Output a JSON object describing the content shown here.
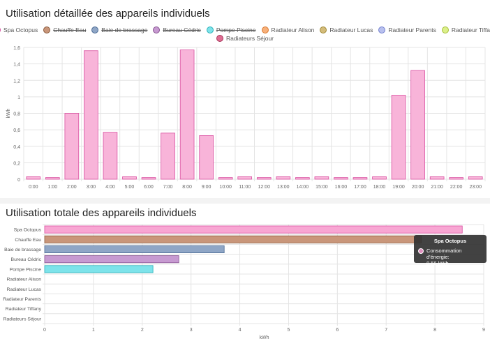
{
  "card1": {
    "title": "Utilisation détaillée des appareils individuels"
  },
  "card2": {
    "title": "Utilisation totale des appareils individuels"
  },
  "legend": [
    {
      "label": "Spa Octopus",
      "color": "#f8b4d9",
      "border": "#d94fa0",
      "hidden": false
    },
    {
      "label": "Chauffe Eau",
      "color": "#c9967a",
      "border": "#8a5a3c",
      "hidden": true
    },
    {
      "label": "Baie de brassage",
      "color": "#8fa6c6",
      "border": "#4a6a94",
      "hidden": true
    },
    {
      "label": "Bureau Cédric",
      "color": "#c79ad1",
      "border": "#84508f",
      "hidden": true
    },
    {
      "label": "Pompe Piscine",
      "color": "#7de3ea",
      "border": "#2bb0b8",
      "hidden": true
    },
    {
      "label": "Radiateur Alison",
      "color": "#f7b07a",
      "border": "#d9782e",
      "hidden": false
    },
    {
      "label": "Radiateur Lucas",
      "color": "#d4bc7a",
      "border": "#a08936",
      "hidden": false
    },
    {
      "label": "Radiateur Parents",
      "color": "#b8c0ee",
      "border": "#7380cf",
      "hidden": false
    },
    {
      "label": "Radiateur Tiffany",
      "color": "#dcf08a",
      "border": "#a6bf3a",
      "hidden": false
    },
    {
      "label": "Radiateurs Séjour",
      "color": "#de6d92",
      "border": "#a8335a",
      "hidden": false
    }
  ],
  "tooltip": {
    "title": "Spa Octopus",
    "line1": "Consommation d'énergie:",
    "line2": "8,56 kWh",
    "color": "#de8fbd"
  },
  "chart_data": [
    {
      "type": "bar",
      "title": "Utilisation détaillée des appareils individuels",
      "xlabel": "",
      "ylabel": "kWh",
      "ylim": [
        0,
        1.6
      ],
      "yticks": [
        "0",
        "0,2",
        "0,4",
        "0,6",
        "0,8",
        "1",
        "1,2",
        "1,4",
        "1,6"
      ],
      "grid": true,
      "legend_position": "top",
      "categories": [
        "0:00",
        "1:00",
        "2:00",
        "3:00",
        "4:00",
        "5:00",
        "6:00",
        "7:00",
        "8:00",
        "9:00",
        "10:00",
        "11:00",
        "12:00",
        "13:00",
        "14:00",
        "15:00",
        "16:00",
        "17:00",
        "18:00",
        "19:00",
        "20:00",
        "21:00",
        "22:00",
        "23:00"
      ],
      "series": [
        {
          "name": "Spa Octopus",
          "color": "#f8b4d9",
          "border": "#d94fa0",
          "values": [
            0.03,
            0.02,
            0.8,
            1.56,
            0.57,
            0.03,
            0.02,
            0.56,
            1.57,
            0.53,
            0.02,
            0.03,
            0.02,
            0.03,
            0.02,
            0.03,
            0.02,
            0.02,
            0.03,
            1.02,
            1.32,
            0.03,
            0.02,
            0.03
          ]
        }
      ]
    },
    {
      "type": "bar",
      "orientation": "horizontal",
      "title": "Utilisation totale des appareils individuels",
      "xlabel": "kWh",
      "ylabel": "",
      "xlim": [
        0,
        9
      ],
      "xticks": [
        "0",
        "1",
        "2",
        "3",
        "4",
        "5",
        "6",
        "7",
        "8",
        "9"
      ],
      "grid": true,
      "categories": [
        "Spa Octopus",
        "Chauffe Eau",
        "Baie de brassage",
        "Bureau Cédric",
        "Pompe Piscine",
        "Radiateur Alison",
        "Radiateur Lucas",
        "Radiateur Parents",
        "Radiateur Tiffany",
        "Radiateurs Séjour"
      ],
      "values": [
        8.56,
        7.72,
        3.68,
        2.75,
        2.22,
        0,
        0,
        0,
        0,
        0
      ],
      "colors": [
        "#f8a6d3",
        "#c9967a",
        "#8fa6c6",
        "#c79ad1",
        "#7de3ea",
        "#f7b07a",
        "#d4bc7a",
        "#b8c0ee",
        "#dcf08a",
        "#de6d92"
      ],
      "borders": [
        "#d94fa0",
        "#8a5a3c",
        "#4a6a94",
        "#84508f",
        "#2bb0b8",
        "#d9782e",
        "#a08936",
        "#7380cf",
        "#a6bf3a",
        "#a8335a"
      ]
    }
  ]
}
